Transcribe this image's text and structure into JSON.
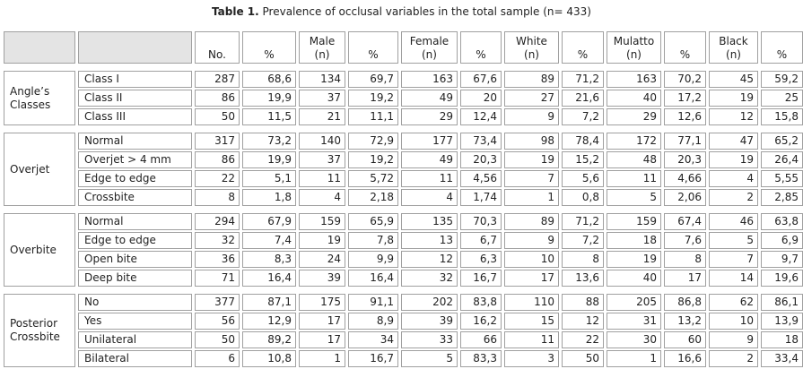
{
  "header": {
    "title_bold": "Table 1.",
    "title_rest": "Prevalence of occlusal variables in the total sample (n= 433)"
  },
  "table": {
    "columns": [
      "No.",
      "%",
      "Male (n)",
      "%",
      "Female (n)",
      "%",
      "White (n)",
      "%",
      "Mulatto (n)",
      "%",
      "Black (n)",
      "%"
    ],
    "groups": [
      {
        "label": "Angle’s Classes",
        "rows": [
          [
            "Class I",
            "287",
            "68,6",
            "134",
            "69,7",
            "163",
            "67,6",
            "89",
            "71,2",
            "163",
            "70,2",
            "45",
            "59,2"
          ],
          [
            "Class II",
            "86",
            "19,9",
            "37",
            "19,2",
            "49",
            "20",
            "27",
            "21,6",
            "40",
            "17,2",
            "19",
            "25"
          ],
          [
            "Class III",
            "50",
            "11,5",
            "21",
            "11,1",
            "29",
            "12,4",
            "9",
            "7,2",
            "29",
            "12,6",
            "12",
            "15,8"
          ]
        ]
      },
      {
        "label": "Overjet",
        "rows": [
          [
            "Normal",
            "317",
            "73,2",
            "140",
            "72,9",
            "177",
            "73,4",
            "98",
            "78,4",
            "172",
            "77,1",
            "47",
            "65,2"
          ],
          [
            "Overjet > 4 mm",
            "86",
            "19,9",
            "37",
            "19,2",
            "49",
            "20,3",
            "19",
            "15,2",
            "48",
            "20,3",
            "19",
            "26,4"
          ],
          [
            "Edge to edge",
            "22",
            "5,1",
            "11",
            "5,72",
            "11",
            "4,56",
            "7",
            "5,6",
            "11",
            "4,66",
            "4",
            "5,55"
          ],
          [
            "Crossbite",
            "8",
            "1,8",
            "4",
            "2,18",
            "4",
            "1,74",
            "1",
            "0,8",
            "5",
            "2,06",
            "2",
            "2,85"
          ]
        ]
      },
      {
        "label": "Overbite",
        "rows": [
          [
            "Normal",
            "294",
            "67,9",
            "159",
            "65,9",
            "135",
            "70,3",
            "89",
            "71,2",
            "159",
            "67,4",
            "46",
            "63,8"
          ],
          [
            "Edge to edge",
            "32",
            "7,4",
            "19",
            "7,8",
            "13",
            "6,7",
            "9",
            "7,2",
            "18",
            "7,6",
            "5",
            "6,9"
          ],
          [
            "Open bite",
            "36",
            "8,3",
            "24",
            "9,9",
            "12",
            "6,3",
            "10",
            "8",
            "19",
            "8",
            "7",
            "9,7"
          ],
          [
            "Deep bite",
            "71",
            "16,4",
            "39",
            "16,4",
            "32",
            "16,7",
            "17",
            "13,6",
            "40",
            "17",
            "14",
            "19,6"
          ]
        ]
      },
      {
        "label": "Posterior Crossbite",
        "rows": [
          [
            "No",
            "377",
            "87,1",
            "175",
            "91,1",
            "202",
            "83,8",
            "110",
            "88",
            "205",
            "86,8",
            "62",
            "86,1"
          ],
          [
            "Yes",
            "56",
            "12,9",
            "17",
            "8,9",
            "39",
            "16,2",
            "15",
            "12",
            "31",
            "13,2",
            "10",
            "13,9"
          ],
          [
            "Unilateral",
            "50",
            "89,2",
            "17",
            "34",
            "33",
            "66",
            "11",
            "22",
            "30",
            "60",
            "9",
            "18"
          ],
          [
            "Bilateral",
            "6",
            "10,8",
            "1",
            "16,7",
            "5",
            "83,3",
            "3",
            "50",
            "1",
            "16,6",
            "2",
            "33,4"
          ]
        ]
      }
    ]
  }
}
